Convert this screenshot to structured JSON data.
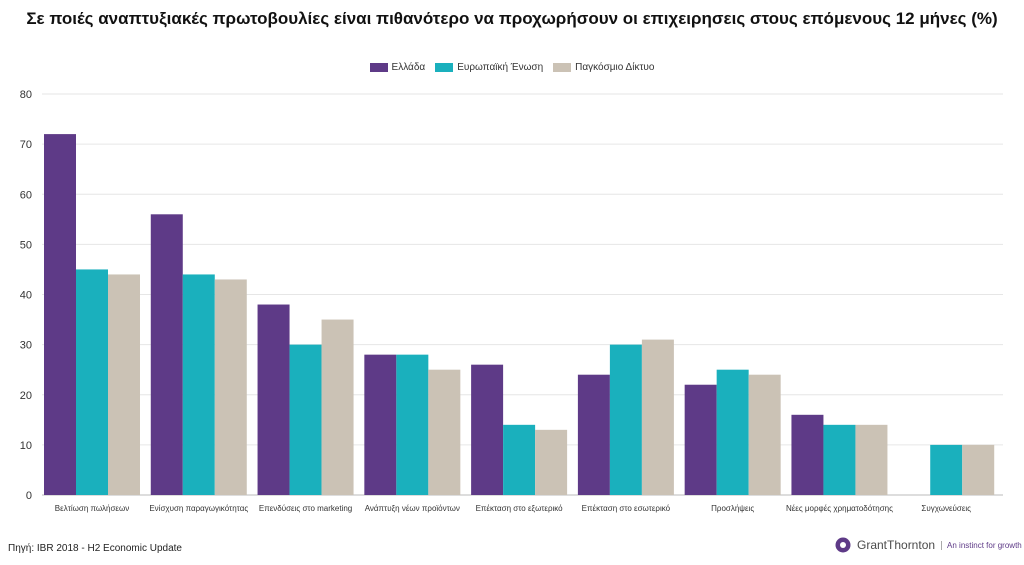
{
  "chart_data": {
    "type": "bar",
    "title": "Σε ποιές αναπτυξιακές πρωτοβουλίες είναι πιθανότερο να προχωρήσουν οι επιχειρησεις στους επόμενους 12 μήνες (%)",
    "categories": [
      "Βελτίωση πωλήσεων",
      "Ενίσχυση παραγωγικότητας",
      "Επενδύσεις στο marketing",
      "Ανάπτυξη νέων προϊόντων",
      "Επέκταση στο εξωτερικό",
      "Επέκταση στο εσωτερικό",
      "Προσλήψεις",
      "Νέες μορφές χρηματοδότησης",
      "Συγχωνεύσεις"
    ],
    "series": [
      {
        "name": "Ελλάδα",
        "color": "#5e3a87",
        "values": [
          72,
          56,
          38,
          28,
          26,
          24,
          22,
          16,
          null
        ]
      },
      {
        "name": "Ευρωπαϊκή Ένωση",
        "color": "#1ab0bd",
        "values": [
          45,
          44,
          30,
          28,
          14,
          30,
          25,
          14,
          10
        ]
      },
      {
        "name": "Παγκόσμιο Δίκτυο",
        "color": "#cbc2b5",
        "values": [
          44,
          43,
          35,
          25,
          13,
          31,
          24,
          14,
          10
        ]
      }
    ],
    "ylim": [
      0,
      80
    ],
    "yticks": [
      "0",
      "10",
      "20",
      "30",
      "40",
      "50",
      "60",
      "70",
      "80"
    ],
    "grid": true,
    "legend": "top"
  },
  "footer": {
    "source": "Πηγή: IBR 2018 - H2 Economic Update",
    "logo_name": "GrantThornton",
    "logo_tagline": "An instinct for growth"
  }
}
